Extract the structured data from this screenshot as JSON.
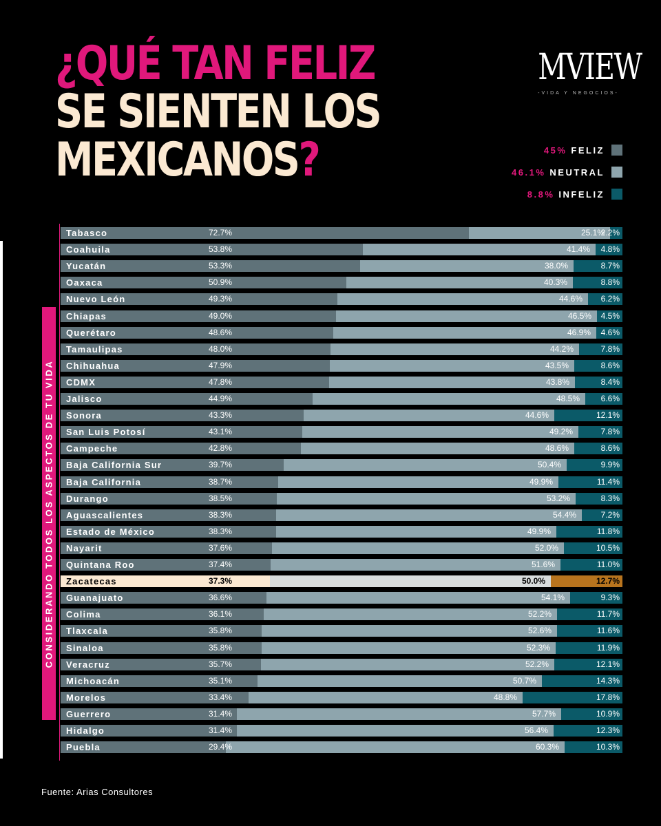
{
  "header": {
    "title_line1_a": "¿QUÉ TAN ",
    "title_line1_b": "FELIZ",
    "title_line2": "SE SIENTEN LOS",
    "title_line3_a": "MEXICANOS",
    "title_line3_b": "?"
  },
  "logo": {
    "name": "MVIEW",
    "tagline": "-VIDA Y NEGOCIOS-"
  },
  "legend": [
    {
      "pct": "45%",
      "label": "FELIZ",
      "color": "#5f7279"
    },
    {
      "pct": "46.1%",
      "label": "NEUTRAL",
      "color": "#8ea5ad"
    },
    {
      "pct": "8.8%",
      "label": "INFELIZ",
      "color": "#0b5a68"
    }
  ],
  "side_label": "CONSIDERANDO TODOS LOS ASPECTOS DE TU VIDA",
  "footer": "Fuente: Arias Consultores",
  "colors": {
    "feliz": "#5f7279",
    "neutral": "#8ea5ad",
    "infeliz": "#0b5a68",
    "highlight_feliz": "#fbe9d2",
    "highlight_neutral": "#d8dcdc",
    "highlight_infeliz": "#b8741e",
    "accent": "#e0187b"
  },
  "chart_data": {
    "type": "bar",
    "stacked": true,
    "orientation": "horizontal",
    "highlight": "Zacatecas",
    "categories": [
      "Tabasco",
      "Coahuila",
      "Yucatán",
      "Oaxaca",
      "Nuevo León",
      "Chiapas",
      "Querétaro",
      "Tamaulipas",
      "Chihuahua",
      "CDMX",
      "Jalisco",
      "Sonora",
      "San Luis Potosí",
      "Campeche",
      "Baja California Sur",
      "Baja California",
      "Durango",
      "Aguascalientes",
      "Estado de México",
      "Nayarit",
      "Quintana Roo",
      "Zacatecas",
      "Guanajuato",
      "Colima",
      "Tlaxcala",
      "Sinaloa",
      "Veracruz",
      "Michoacán",
      "Morelos",
      "Guerrero",
      "Hidalgo",
      "Puebla"
    ],
    "series": [
      {
        "name": "FELIZ",
        "values": [
          72.7,
          53.8,
          53.3,
          50.9,
          49.3,
          49.0,
          48.6,
          48.0,
          47.9,
          47.8,
          44.9,
          43.3,
          43.1,
          42.8,
          39.7,
          38.7,
          38.5,
          38.3,
          38.3,
          37.6,
          37.4,
          37.3,
          36.6,
          36.1,
          35.8,
          35.8,
          35.7,
          35.1,
          33.4,
          31.4,
          31.4,
          29.4
        ]
      },
      {
        "name": "NEUTRAL",
        "values": [
          25.1,
          41.4,
          38.0,
          40.3,
          44.6,
          46.5,
          46.9,
          44.2,
          43.5,
          43.8,
          48.5,
          44.6,
          49.2,
          48.6,
          50.4,
          49.9,
          53.2,
          54.4,
          49.9,
          52.0,
          51.6,
          50.0,
          54.1,
          52.2,
          52.6,
          52.3,
          52.2,
          50.7,
          48.8,
          57.7,
          56.4,
          60.3
        ]
      },
      {
        "name": "INFELIZ",
        "values": [
          2.2,
          4.8,
          8.7,
          8.8,
          6.2,
          4.5,
          4.6,
          7.8,
          8.6,
          8.4,
          6.6,
          12.1,
          7.8,
          8.6,
          9.9,
          11.4,
          8.3,
          7.2,
          11.8,
          10.5,
          11.0,
          12.7,
          9.3,
          11.7,
          11.6,
          11.9,
          12.1,
          14.3,
          17.8,
          10.9,
          12.3,
          10.3
        ]
      }
    ],
    "labels": {
      "feliz": [
        "72.7%",
        "53.8%",
        "53.3%",
        "50.9%",
        "49.3%",
        "49.0%",
        "48.6%",
        "48.0%",
        "47.9%",
        "47.8%",
        "44.9%",
        "43.3%",
        "43.1%",
        "42.8%",
        "39.7%",
        "38.7%",
        "38.5%",
        "38.3%",
        "38.3%",
        "37.6%",
        "37.4%",
        "37.3%",
        "36.6%",
        "36.1%",
        "35.8%",
        "35.8%",
        "35.7%",
        "35.1%",
        "33.4%",
        "31.4%",
        "31.4%",
        "29.4%"
      ],
      "neutral": [
        "25.1%",
        "41.4%",
        "38.0%",
        "40.3%",
        "44.6%",
        "46.5%",
        "46.9%",
        "44.2%",
        "43.5%",
        "43.8%",
        "48.5%",
        "44.6%",
        "49.2%",
        "48.6%",
        "50.4%",
        "49.9%",
        "53.2%",
        "54.4%",
        "49.9%",
        "52.0%",
        "51.6%",
        "50.0%",
        "54.1%",
        "52.2%",
        "52.6%",
        "52.3%",
        "52.2%",
        "50.7%",
        "48.8%",
        "57.7%",
        "56.4%",
        "60.3%"
      ],
      "infeliz": [
        "2.2%",
        "4.8%",
        "8.7%",
        "8.8%",
        "6.2%",
        "4.5%",
        "4.6%",
        "7.8%",
        "8.6%",
        "8.4%",
        "6.6%",
        "12.1%",
        "7.8%",
        "8.6%",
        "9.9%",
        "11.4%",
        "8.3%",
        "7.2%",
        "11.8%",
        "10.5%",
        "11.0%",
        "12.7%",
        "9.3%",
        "11.7%",
        "11.6%",
        "11.9%",
        "12.1%",
        "14.3%",
        "17.8%",
        "10.9%",
        "12.3%",
        "10.3%"
      ]
    }
  }
}
